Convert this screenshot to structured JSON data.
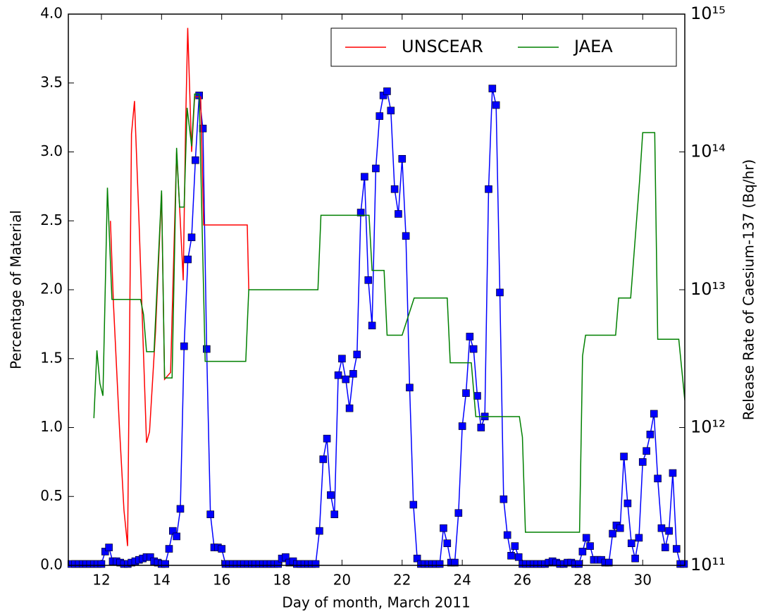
{
  "chart_data": {
    "type": "line",
    "xlabel": "Day of month, March 2011",
    "ylabel": "Percentage of Material",
    "y2label": "Release Rate of Caesium-137 (Bq/hr)",
    "xlim": [
      10.9,
      31.4
    ],
    "xticks": [
      12,
      14,
      16,
      18,
      20,
      22,
      24,
      26,
      28,
      30
    ],
    "ylim": [
      0,
      4
    ],
    "yticks": [
      {
        "value": 0,
        "label": "0.0"
      },
      {
        "value": 0.5,
        "label": "0.5"
      },
      {
        "value": 1,
        "label": "1.0"
      },
      {
        "value": 1.5,
        "label": "1.5"
      },
      {
        "value": 2,
        "label": "2.0"
      },
      {
        "value": 2.5,
        "label": "2.5"
      },
      {
        "value": 3,
        "label": "3.0"
      },
      {
        "value": 3.5,
        "label": "3.5"
      },
      {
        "value": 4,
        "label": "4.0"
      }
    ],
    "y2lim": [
      100000000000.0,
      1000000000000000.0
    ],
    "y2scale": "log",
    "y2ticks": [
      {
        "value": 100000000000.0,
        "label": "10¹¹"
      },
      {
        "value": 1000000000000.0,
        "label": "10¹²"
      },
      {
        "value": 10000000000000.0,
        "label": "10¹³"
      },
      {
        "value": 100000000000000.0,
        "label": "10¹⁴"
      },
      {
        "value": 1000000000000000.0,
        "label": "10¹⁵"
      }
    ],
    "legend": "upper right",
    "series": [
      {
        "color": "#0000ff",
        "marker": "square",
        "x": [
          11,
          11.125,
          11.25,
          11.375,
          11.5,
          11.625,
          11.75,
          11.875,
          12,
          12.125,
          12.25,
          12.375,
          12.5,
          12.625,
          12.75,
          12.875,
          13,
          13.125,
          13.25,
          13.375,
          13.5,
          13.625,
          13.75,
          13.875,
          14,
          14.125,
          14.25,
          14.375,
          14.5,
          14.625,
          14.75,
          14.875,
          15,
          15.125,
          15.25,
          15.375,
          15.5,
          15.625,
          15.75,
          15.875,
          16,
          16.125,
          16.25,
          16.375,
          16.5,
          16.625,
          16.75,
          16.875,
          17,
          17.125,
          17.25,
          17.375,
          17.5,
          17.625,
          17.75,
          17.875,
          18,
          18.125,
          18.25,
          18.375,
          18.5,
          18.625,
          18.75,
          18.875,
          19,
          19.125,
          19.25,
          19.375,
          19.5,
          19.625,
          19.75,
          19.875,
          20,
          20.125,
          20.25,
          20.375,
          20.5,
          20.625,
          20.75,
          20.875,
          21,
          21.125,
          21.25,
          21.375,
          21.5,
          21.625,
          21.75,
          21.875,
          22,
          22.125,
          22.25,
          22.375,
          22.5,
          22.625,
          22.75,
          22.875,
          23,
          23.125,
          23.25,
          23.375,
          23.5,
          23.625,
          23.75,
          23.875,
          24,
          24.125,
          24.25,
          24.375,
          24.5,
          24.625,
          24.75,
          24.875,
          25,
          25.125,
          25.25,
          25.375,
          25.5,
          25.625,
          25.75,
          25.875,
          26,
          26.125,
          26.25,
          26.375,
          26.5,
          26.625,
          26.75,
          26.875,
          27,
          27.125,
          27.25,
          27.375,
          27.5,
          27.625,
          27.75,
          27.875,
          28,
          28.125,
          28.25,
          28.375,
          28.5,
          28.625,
          28.75,
          28.875,
          29,
          29.125,
          29.25,
          29.375,
          29.5,
          29.625,
          29.75,
          29.875,
          30,
          30.125,
          30.25,
          30.375,
          30.5,
          30.625,
          30.75,
          30.875,
          31,
          31.125,
          31.25,
          31.375
        ],
        "values": [
          0.01,
          0.01,
          0.01,
          0.01,
          0.01,
          0.01,
          0.01,
          0.01,
          0.01,
          0.1,
          0.13,
          0.03,
          0.03,
          0.02,
          0.01,
          0.01,
          0.02,
          0.03,
          0.04,
          0.05,
          0.06,
          0.06,
          0.03,
          0.02,
          0.01,
          0.01,
          0.12,
          0.25,
          0.21,
          0.41,
          1.59,
          2.22,
          2.38,
          2.94,
          3.41,
          3.17,
          1.57,
          0.37,
          0.13,
          0.13,
          0.12,
          0.01,
          0.01,
          0.01,
          0.01,
          0.01,
          0.01,
          0.01,
          0.01,
          0.01,
          0.01,
          0.01,
          0.01,
          0.01,
          0.01,
          0.01,
          0.05,
          0.06,
          0.02,
          0.03,
          0.01,
          0.01,
          0.01,
          0.01,
          0.01,
          0.01,
          0.25,
          0.77,
          0.92,
          0.51,
          0.37,
          1.38,
          1.5,
          1.35,
          1.14,
          1.39,
          1.53,
          2.56,
          2.82,
          2.07,
          1.74,
          2.88,
          3.26,
          3.41,
          3.44,
          3.3,
          2.73,
          2.55,
          2.95,
          2.39,
          1.29,
          0.44,
          0.05,
          0.01,
          0.01,
          0.01,
          0.01,
          0.01,
          0.01,
          0.27,
          0.16,
          0.02,
          0.02,
          0.38,
          1.01,
          1.25,
          1.66,
          1.57,
          1.23,
          1,
          1.08,
          2.73,
          3.46,
          3.34,
          1.98,
          0.48,
          0.22,
          0.07,
          0.14,
          0.06,
          0.01,
          0.01,
          0.01,
          0.01,
          0.01,
          0.01,
          0.01,
          0.02,
          0.03,
          0.02,
          0.01,
          0.01,
          0.02,
          0.02,
          0.01,
          0.01,
          0.1,
          0.2,
          0.14,
          0.04,
          0.04,
          0.04,
          0.02,
          0.02,
          0.23,
          0.29,
          0.27,
          0.79,
          0.45,
          0.16,
          0.05,
          0.2,
          0.75,
          0.83,
          0.95,
          1.1,
          0.63,
          0.27,
          0.13,
          0.25,
          0.67,
          0.12,
          0.01,
          0.01
        ]
      },
      {
        "name": "UNSCEAR",
        "color": "#ff0000",
        "axis": "y2",
        "x": [
          12.3,
          12.4,
          12.6,
          12.75,
          12.87,
          13,
          13.1,
          13.25,
          13.5,
          13.6,
          13.8,
          14,
          14.1,
          14.3,
          14.5,
          14.6,
          14.72,
          14.8,
          14.87,
          15,
          15.1,
          15.3,
          15.4,
          16.85,
          16.9
        ],
        "values": [
          31600000000000.0,
          7940000000000.0,
          1000000000000.0,
          251000000000.0,
          138000000000.0,
          135000000000000.0,
          234000000000000.0,
          31600000000000.0,
          776000000000.0,
          933000000000.0,
          5010000000000.0,
          50100000000000.0,
          2240000000000.0,
          2510000000000.0,
          100000000000000.0,
          39800000000000.0,
          11700000000000.0,
          158000000000000.0,
          794000000000000.0,
          100000000000000.0,
          251000000000000.0,
          251000000000000.0,
          29500000000000.0,
          29500000000000.0,
          10000000000000.0
        ]
      },
      {
        "name": "JAEA",
        "color": "#008000",
        "axis": "y2",
        "x": [
          11.75,
          11.85,
          11.95,
          12.05,
          12.2,
          12.35,
          13.3,
          13.4,
          13.5,
          13.75,
          14,
          14.1,
          14.35,
          14.5,
          14.6,
          14.75,
          14.85,
          15,
          15.1,
          15.25,
          15.45,
          16.8,
          16.9,
          19.2,
          19.3,
          20.9,
          21,
          21.4,
          21.5,
          22,
          22.4,
          23.5,
          23.6,
          24.3,
          24.45,
          25.9,
          26,
          26.1,
          27.9,
          28,
          28.1,
          29.1,
          29.2,
          29.6,
          29.9,
          30,
          30.4,
          30.5,
          31.2,
          31.4
        ],
        "values": [
          1170000000000.0,
          3630000000000.0,
          2090000000000.0,
          1700000000000.0,
          55000000000000.0,
          8510000000000.0,
          8510000000000.0,
          6610000000000.0,
          3550000000000.0,
          3550000000000.0,
          52500000000000.0,
          2290000000000.0,
          2290000000000.0,
          107000000000000.0,
          39800000000000.0,
          39800000000000.0,
          209000000000000.0,
          110000000000000.0,
          263000000000000.0,
          263000000000000.0,
          3020000000000.0,
          3020000000000.0,
          10000000000000.0,
          10000000000000.0,
          34700000000000.0,
          34700000000000.0,
          13800000000000.0,
          13800000000000.0,
          4680000000000.0,
          4680000000000.0,
          8710000000000.0,
          8710000000000.0,
          2950000000000.0,
          2950000000000.0,
          1200000000000.0,
          1200000000000.0,
          851000000000.0,
          174000000000.0,
          174000000000.0,
          3310000000000.0,
          4680000000000.0,
          4680000000000.0,
          8710000000000.0,
          8710000000000.0,
          63100000000000.0,
          138000000000000.0,
          138000000000000.0,
          4370000000000.0,
          4370000000000.0,
          1580000000000.0
        ]
      }
    ]
  }
}
